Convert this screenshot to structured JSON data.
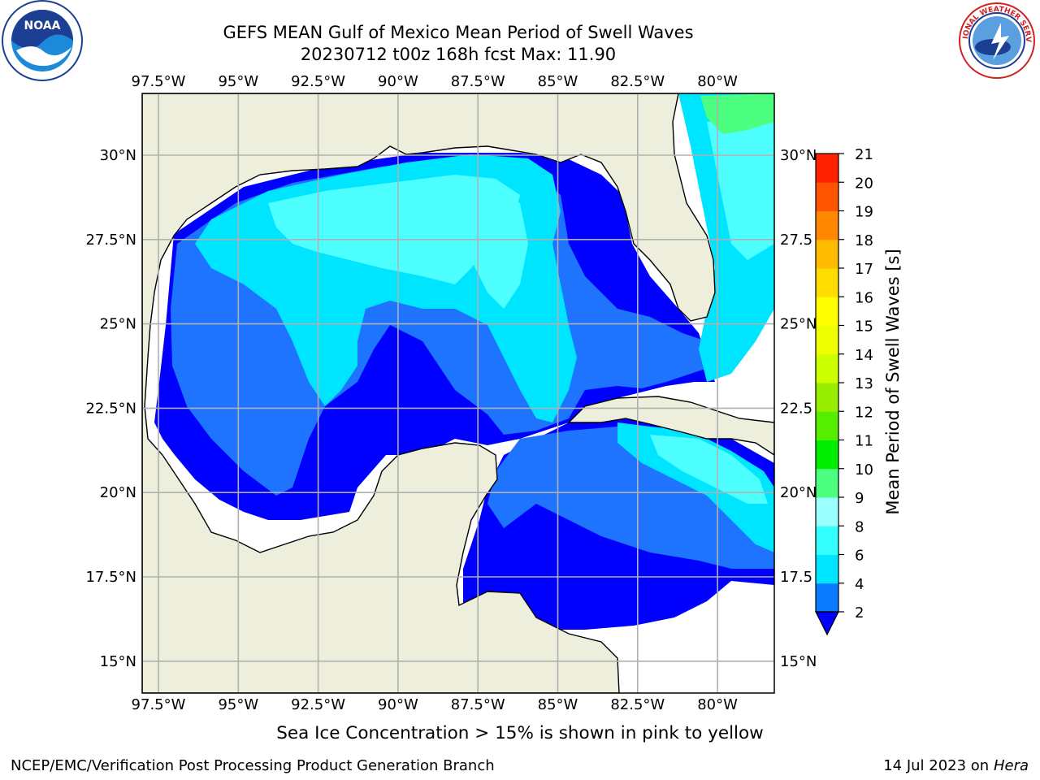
{
  "title": {
    "line1": "GEFS MEAN Gulf of Mexico Mean Period of Swell Waves",
    "line2": "20230712 t00z 168h fcst   Max: 11.90"
  },
  "note": "Sea Ice Concentration > 15% is shown in pink to yellow",
  "footer": {
    "credit": "NCEP/EMC/Verification Post Processing Product Generation Branch",
    "date_prefix": "14 Jul 2023 on ",
    "machine": "Hera"
  },
  "logos": {
    "noaa_text": "NOAA",
    "nws_text": "NATIONAL WEATHER SERVICE"
  },
  "map": {
    "lon_ticks": [
      "97.5°W",
      "95°W",
      "92.5°W",
      "90°W",
      "87.5°W",
      "85°W",
      "82.5°W",
      "80°W"
    ],
    "lat_ticks_left": [
      "30°N",
      "27.5°N",
      "25°N",
      "22.5°N",
      "20°N",
      "17.5°N",
      "15°N"
    ],
    "lat_ticks_right": [
      "30°N",
      "27.5",
      "25°N",
      "22.5",
      "20°N",
      "17.5",
      "15°N"
    ],
    "land_color": "#eeeedd",
    "grid_color": "#b0b0b0"
  },
  "colorbar": {
    "label": "Mean Period of Swell Waves [s]",
    "ticks": [
      "2",
      "4",
      "6",
      "8",
      "9",
      "10",
      "11",
      "12",
      "13",
      "14",
      "15",
      "16",
      "17",
      "18",
      "19",
      "20",
      "21"
    ],
    "under_color": "#0000ff",
    "colors": [
      "#0a7aff",
      "#00e5ff",
      "#33ffff",
      "#99ffff",
      "#4dff80",
      "#00ee00",
      "#55ee00",
      "#99ee00",
      "#ccff00",
      "#eeff00",
      "#ffff00",
      "#ffdd00",
      "#ffbb00",
      "#ff8800",
      "#ff5500",
      "#ff2200",
      "#ff0000"
    ]
  }
}
